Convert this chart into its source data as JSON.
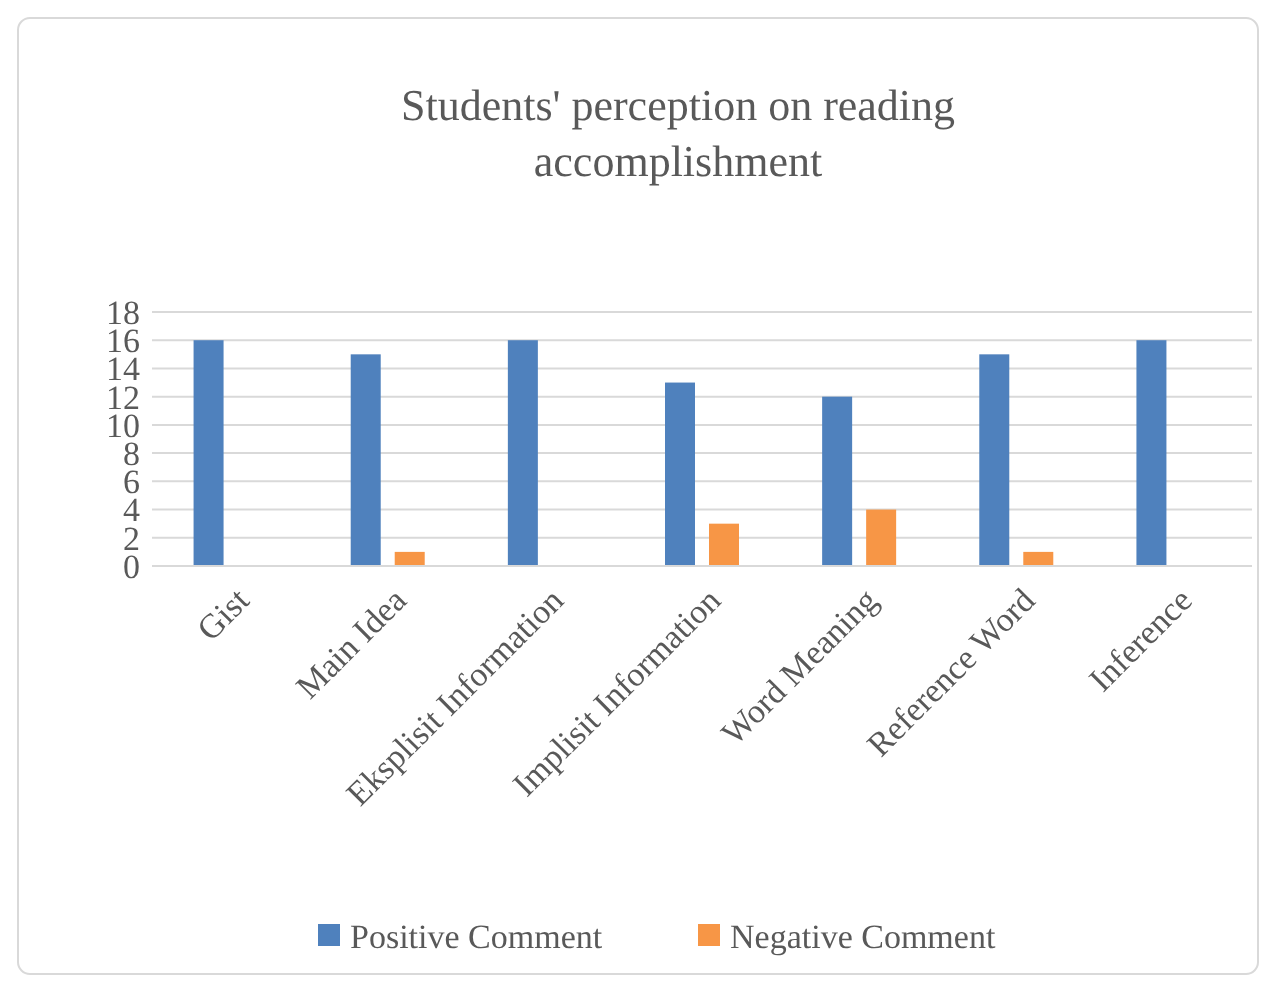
{
  "chart_data": {
    "type": "bar",
    "title": "Students' perception on reading accomplishment",
    "categories": [
      "Gist",
      "Main Idea",
      "Eksplisit Information",
      "Implisit Information",
      "Word Meaning",
      "Reference Word",
      "Inference"
    ],
    "series": [
      {
        "name": "Positive Comment",
        "color": "#4f81bd",
        "values": [
          16,
          15,
          16,
          13,
          12,
          15,
          16
        ]
      },
      {
        "name": "Negative Comment",
        "color": "#f79646",
        "values": [
          0,
          1,
          0,
          3,
          4,
          1,
          0
        ]
      }
    ],
    "ylim": [
      0,
      18
    ],
    "yticks": [
      0,
      2,
      4,
      6,
      8,
      10,
      12,
      14,
      16,
      18
    ],
    "grid": "y",
    "legend": "bottom"
  }
}
